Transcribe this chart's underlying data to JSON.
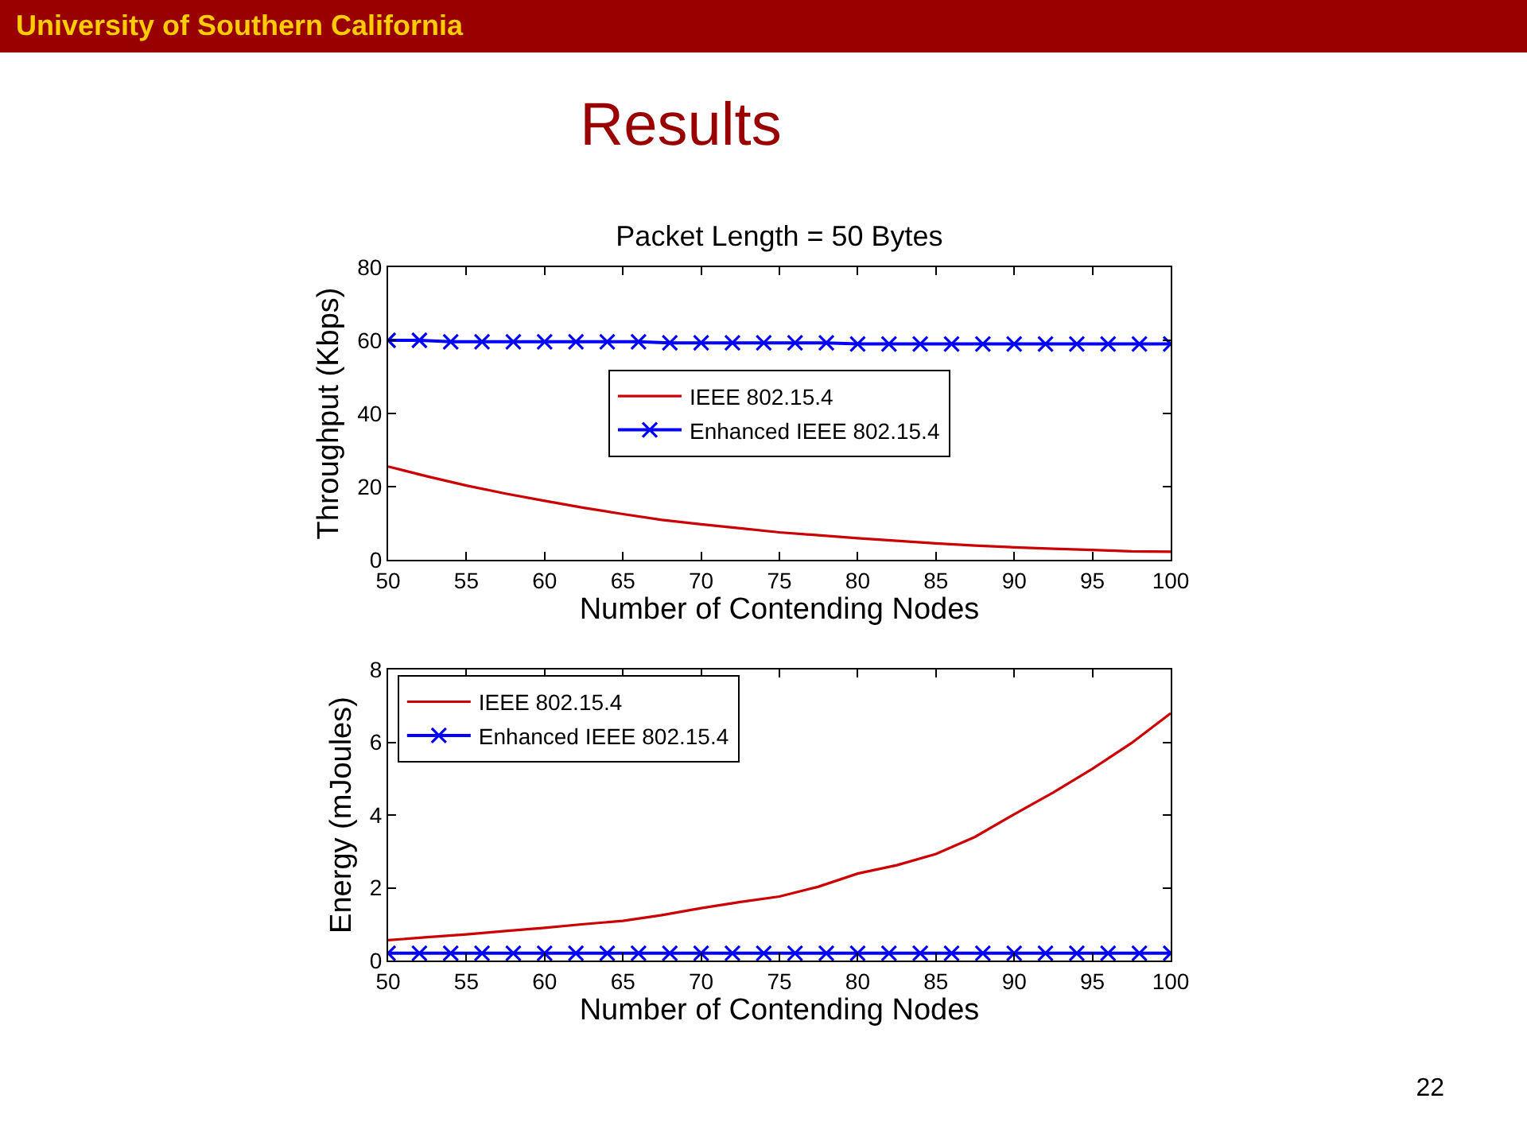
{
  "chart_data": [
    {
      "type": "line",
      "title": "Packet Length = 50 Bytes",
      "xlabel": "Number of Contending Nodes",
      "ylabel": "Throughput (Kbps)",
      "annotations": [
        "University of Southern California",
        "Results"
      ],
      "xlim": [
        50,
        100
      ],
      "xticks": [
        50,
        55,
        60,
        65,
        70,
        75,
        80,
        85,
        90,
        95,
        100
      ],
      "ylim": [
        0,
        80
      ],
      "yticks": [
        0,
        20,
        40,
        60,
        80
      ],
      "legend": "center",
      "line_style": "solid",
      "series": [
        {
          "name": "IEEE 802.15.4",
          "color": "#cc0000",
          "marker": "none",
          "x": [
            50,
            52.5,
            55,
            57.5,
            60,
            62.5,
            65,
            67.5,
            70,
            72.5,
            75,
            77.5,
            80,
            82.5,
            85,
            87.5,
            90,
            92.5,
            95,
            97.5,
            100
          ],
          "values": [
            25.5,
            22.8,
            20.3,
            18.1,
            16.1,
            14.2,
            12.5,
            10.9,
            9.7,
            8.6,
            7.5,
            6.7,
            5.9,
            5.2,
            4.5,
            3.9,
            3.4,
            3.0,
            2.7,
            2.3,
            2.2
          ]
        },
        {
          "name": "Enhanced IEEE 802.15.4",
          "color": "#0000ff",
          "marker": "cross",
          "x": [
            50,
            52,
            54,
            56,
            58,
            60,
            62,
            64,
            66,
            68,
            70,
            72,
            74,
            76,
            78,
            80,
            82,
            84,
            86,
            88,
            90,
            92,
            94,
            96,
            98,
            100
          ],
          "values": [
            60,
            60,
            59.6,
            59.6,
            59.6,
            59.6,
            59.6,
            59.6,
            59.6,
            59.3,
            59.3,
            59.3,
            59.3,
            59.3,
            59.3,
            59,
            59,
            59,
            59,
            59,
            59,
            59,
            59,
            59,
            59,
            59
          ]
        }
      ]
    },
    {
      "type": "line",
      "xlabel": "Number of Contending Nodes",
      "ylabel": "Energy (mJoules)",
      "annotations": [
        "22"
      ],
      "xlim": [
        50,
        100
      ],
      "xticks": [
        50,
        55,
        60,
        65,
        70,
        75,
        80,
        85,
        90,
        95,
        100
      ],
      "ylim": [
        0,
        8
      ],
      "yticks": [
        0,
        2,
        4,
        6,
        8
      ],
      "legend": "top left",
      "line_style": "solid",
      "series": [
        {
          "name": "IEEE 802.15.4",
          "color": "#cc0000",
          "marker": "none",
          "x": [
            50,
            52.5,
            55,
            57.5,
            60,
            62.5,
            65,
            67.5,
            70,
            72.5,
            75,
            77.5,
            80,
            82.5,
            85,
            87.5,
            90,
            92.5,
            95,
            97.5,
            100
          ],
          "values": [
            0.56,
            0.64,
            0.72,
            0.81,
            0.9,
            1.0,
            1.09,
            1.25,
            1.44,
            1.61,
            1.76,
            2.03,
            2.39,
            2.62,
            2.93,
            3.4,
            4.02,
            4.62,
            5.27,
            5.98,
            6.8
          ]
        },
        {
          "name": "Enhanced IEEE 802.15.4",
          "color": "#0000ff",
          "marker": "cross",
          "x": [
            50,
            52,
            54,
            56,
            58,
            60,
            62,
            64,
            66,
            68,
            70,
            72,
            74,
            76,
            78,
            80,
            82,
            84,
            86,
            88,
            90,
            92,
            94,
            96,
            98,
            100
          ],
          "values": [
            0.2,
            0.2,
            0.2,
            0.2,
            0.2,
            0.2,
            0.2,
            0.2,
            0.2,
            0.2,
            0.2,
            0.2,
            0.2,
            0.2,
            0.2,
            0.2,
            0.2,
            0.2,
            0.2,
            0.2,
            0.2,
            0.2,
            0.2,
            0.2,
            0.2,
            0.2
          ]
        }
      ]
    }
  ]
}
